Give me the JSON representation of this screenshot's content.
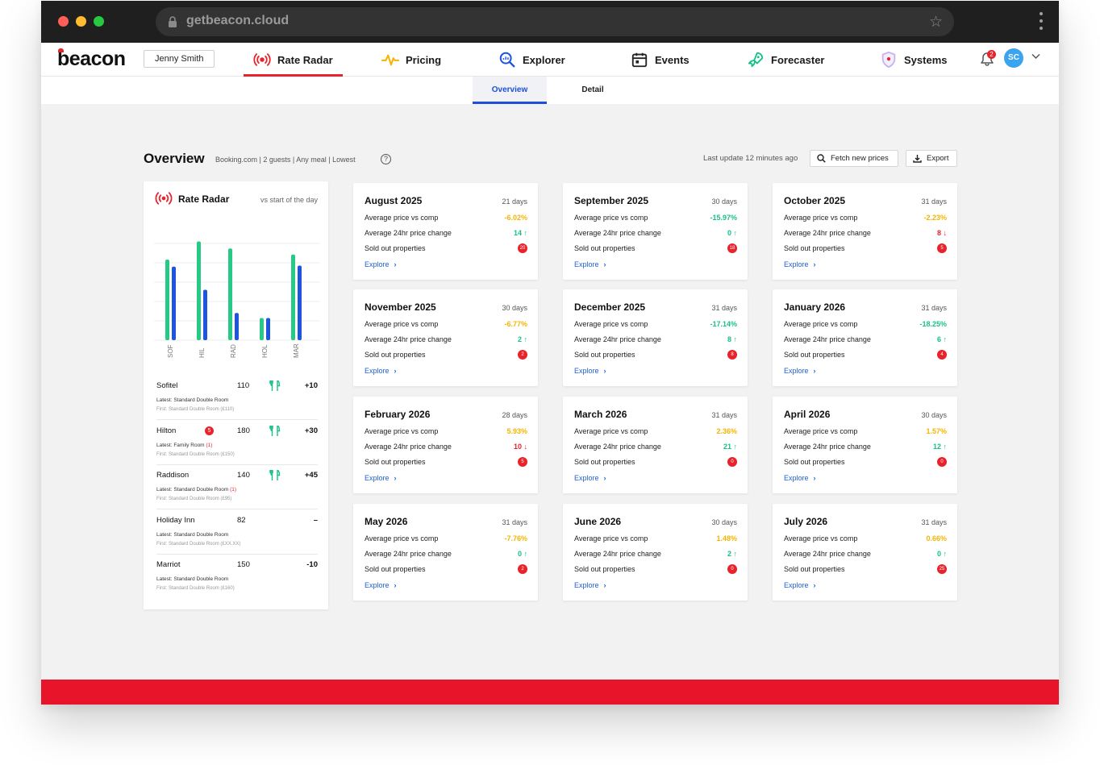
{
  "browser": {
    "url": "getbeacon.cloud"
  },
  "nav": {
    "logo": "beacon",
    "user": "Jenny Smith",
    "items": [
      {
        "label": "Rate Radar",
        "icon": "radar-icon",
        "active": true
      },
      {
        "label": "Pricing",
        "icon": "pulse-icon"
      },
      {
        "label": "Explorer",
        "icon": "magnifier-icon"
      },
      {
        "label": "Events",
        "icon": "calendar-icon"
      },
      {
        "label": "Forecaster",
        "icon": "rocket-icon"
      },
      {
        "label": "Systems",
        "icon": "shield-icon"
      }
    ],
    "notifications": "2",
    "avatar": "SC"
  },
  "subnav": {
    "overview": "Overview",
    "detail": "Detail"
  },
  "header": {
    "title": "Overview",
    "subtitle": "Booking.com | 2 guests | Any meal | Lowest",
    "help": "?",
    "last_update": "Last update 12 minutes ago",
    "fetch_label": "Fetch new prices",
    "export_label": "Export"
  },
  "radar": {
    "title": "Rate Radar",
    "subtitle": "vs start of the day",
    "chart_data": {
      "type": "bar",
      "categories": [
        "SOF",
        "HIL",
        "RAD",
        "HOL",
        "MAR"
      ],
      "series": [
        {
          "values": [
            0.8,
            0.98,
            0.91,
            0.22,
            0.85
          ],
          "color": "#27c987"
        },
        {
          "values": [
            0.73,
            0.5,
            0.27,
            0.22,
            0.74
          ],
          "color": "#1d55e0"
        }
      ]
    },
    "hotels": [
      {
        "name": "Sofitel",
        "badge": "",
        "price": "110",
        "meal": true,
        "delta": "+10",
        "latest": "Latest: Standard Double Room",
        "flag": "",
        "first": "First: Standard Double Room (£110)"
      },
      {
        "name": "Hilton",
        "badge": "5",
        "price": "180",
        "meal": true,
        "delta": "+30",
        "latest": "Latest: Family Room",
        "flag": "(1)",
        "first": "First: Standard Double Room (£150)"
      },
      {
        "name": "Raddison",
        "badge": "",
        "price": "140",
        "meal": true,
        "delta": "+45",
        "latest": "Latest: Standard Double Room",
        "flag": "(1)",
        "first": "First: Standard Double Room (£95)"
      },
      {
        "name": "Holiday Inn",
        "badge": "",
        "price": "82",
        "meal": false,
        "delta": "–",
        "latest": "Latest: Standard Double Room",
        "flag": "",
        "first": "First: Standard Double Room (£XX.XX)"
      },
      {
        "name": "Marriot",
        "badge": "",
        "price": "150",
        "meal": false,
        "delta": "-10",
        "latest": "Latest: Standard Double Room",
        "flag": "",
        "first": "First: Standard Double Room (£160)"
      }
    ]
  },
  "card_labels": {
    "avg_price": "Average price vs comp",
    "avg_change": "Average 24hr price change",
    "sold_out": "Sold out properties",
    "explore": "Explore"
  },
  "months": [
    {
      "title": "August 2025",
      "days": "21 days",
      "avg": "-6.02%",
      "avg_color": "amber",
      "change": "14",
      "dir": "up",
      "sold": "20"
    },
    {
      "title": "September 2025",
      "days": "30 days",
      "avg": "-15.97%",
      "avg_color": "green",
      "change": "0",
      "dir": "up",
      "sold": "18"
    },
    {
      "title": "October 2025",
      "days": "31 days",
      "avg": "-2.23%",
      "avg_color": "amber",
      "change": "8",
      "dir": "down",
      "sold": "5"
    },
    {
      "title": "November 2025",
      "days": "30 days",
      "avg": "-6.77%",
      "avg_color": "amber",
      "change": "2",
      "dir": "up",
      "sold": "2"
    },
    {
      "title": "December 2025",
      "days": "31 days",
      "avg": "-17.14%",
      "avg_color": "green",
      "change": "8",
      "dir": "up",
      "sold": "8"
    },
    {
      "title": "January 2026",
      "days": "31 days",
      "avg": "-18.25%",
      "avg_color": "green",
      "change": "6",
      "dir": "up",
      "sold": "4"
    },
    {
      "title": "February 2026",
      "days": "28 days",
      "avg": "5.93%",
      "avg_color": "amber",
      "change": "10",
      "dir": "down",
      "sold": "5"
    },
    {
      "title": "March 2026",
      "days": "31 days",
      "avg": "2.36%",
      "avg_color": "amber",
      "change": "21",
      "dir": "up",
      "sold": "0"
    },
    {
      "title": "April 2026",
      "days": "30 days",
      "avg": "1.57%",
      "avg_color": "amber",
      "change": "12",
      "dir": "up",
      "sold": "0"
    },
    {
      "title": "May 2026",
      "days": "31 days",
      "avg": "-7.76%",
      "avg_color": "amber",
      "change": "0",
      "dir": "up",
      "sold": "2"
    },
    {
      "title": "June 2026",
      "days": "30 days",
      "avg": "1.48%",
      "avg_color": "amber",
      "change": "2",
      "dir": "up",
      "sold": "0"
    },
    {
      "title": "July 2026",
      "days": "31 days",
      "avg": "0.66%",
      "avg_color": "amber",
      "change": "0",
      "dir": "up",
      "sold": "25"
    }
  ],
  "colors": {
    "accent": "#e8232b",
    "link": "#1d5fd8",
    "green": "#17c089",
    "amber": "#f4b400"
  }
}
